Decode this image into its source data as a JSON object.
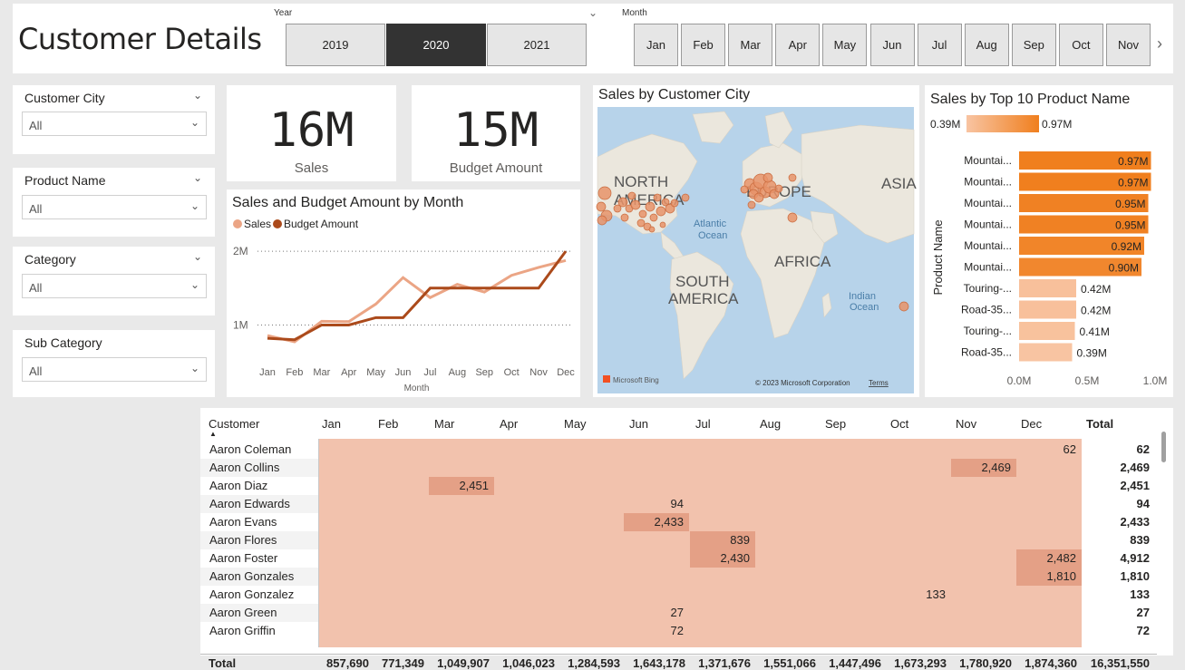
{
  "page": {
    "title": "Customer Details"
  },
  "year_slicer": {
    "caption": "Year",
    "options": [
      "2019",
      "2020",
      "2021"
    ],
    "selected": "2020"
  },
  "month_slicer": {
    "caption": "Month",
    "options": [
      "Jan",
      "Feb",
      "Mar",
      "Apr",
      "May",
      "Jun",
      "Jul",
      "Aug",
      "Sep",
      "Oct",
      "Nov"
    ]
  },
  "filters": [
    {
      "label": "Customer City",
      "value": "All"
    },
    {
      "label": "Product Name",
      "value": "All"
    },
    {
      "label": "Category",
      "value": "All"
    },
    {
      "label": "Sub Category",
      "value": "All"
    }
  ],
  "kpis": [
    {
      "value": "16M",
      "label": "Sales"
    },
    {
      "value": "15M",
      "label": "Budget Amount"
    }
  ],
  "line_chart": {
    "title": "Sales and Budget Amount by Month",
    "legend": [
      "Sales",
      "Budget Amount"
    ],
    "xlabel": "Month",
    "y_ticks": [
      "2M",
      "1M"
    ]
  },
  "map": {
    "title": "Sales by Customer City",
    "labels": [
      "NORTH AMERICA",
      "EUROPE",
      "ASIA",
      "Atlantic Ocean",
      "AFRICA",
      "SOUTH AMERICA",
      "Indian Ocean"
    ],
    "credit": "© 2023 Microsoft Corporation",
    "terms": "Terms",
    "bing": "Microsoft Bing"
  },
  "bar_chart": {
    "title": "Sales by Top 10 Product Name",
    "legend_min": "0.39M",
    "legend_max": "0.97M",
    "ylabel": "Product Name",
    "x_ticks": [
      "0.0M",
      "0.5M",
      "1.0M"
    ]
  },
  "chart_data": [
    {
      "type": "line",
      "title": "Sales and Budget Amount by Month",
      "xlabel": "Month",
      "ylabel": "",
      "categories": [
        "Jan",
        "Feb",
        "Mar",
        "Apr",
        "May",
        "Jun",
        "Jul",
        "Aug",
        "Sep",
        "Oct",
        "Nov",
        "Dec"
      ],
      "series": [
        {
          "name": "Sales",
          "color": "#eba585",
          "values": [
            857690,
            771349,
            1049907,
            1046023,
            1284593,
            1643178,
            1371676,
            1551066,
            1447496,
            1673293,
            1780920,
            1874360
          ]
        },
        {
          "name": "Budget Amount",
          "color": "#ab4a1b",
          "values": [
            820000,
            800000,
            1000000,
            1000000,
            1100000,
            1100000,
            1500000,
            1500000,
            1500000,
            1500000,
            1500000,
            2000000
          ]
        }
      ],
      "ylim": [
        600000,
        2100000
      ],
      "grid": true,
      "legend": "top-left"
    },
    {
      "type": "bar",
      "orientation": "horizontal",
      "title": "Sales by Top 10 Product Name",
      "ylabel": "Product Name",
      "categories": [
        "Mountai...",
        "Mountai...",
        "Mountai...",
        "Mountai...",
        "Mountai...",
        "Mountai...",
        "Touring-...",
        "Road-35...",
        "Touring-...",
        "Road-35..."
      ],
      "values": [
        0.97,
        0.97,
        0.95,
        0.95,
        0.92,
        0.9,
        0.42,
        0.42,
        0.41,
        0.39
      ],
      "labels": [
        "0.97M",
        "0.97M",
        "0.95M",
        "0.95M",
        "0.92M",
        "0.90M",
        "0.42M",
        "0.42M",
        "0.41M",
        "0.39M"
      ],
      "xlim": [
        0,
        1.0
      ],
      "color_min": "#f8c4a2",
      "color_max": "#f07f1e"
    }
  ],
  "matrix": {
    "row_header": "Customer",
    "columns": [
      "Jan",
      "Feb",
      "Mar",
      "Apr",
      "May",
      "Jun",
      "Jul",
      "Aug",
      "Sep",
      "Oct",
      "Nov",
      "Dec",
      "Total"
    ],
    "rows": [
      {
        "name": "Aaron Coleman",
        "cells": {
          "Dec": "62"
        },
        "total": "62"
      },
      {
        "name": "Aaron Collins",
        "cells": {
          "Nov": "2,469"
        },
        "total": "2,469"
      },
      {
        "name": "Aaron Diaz",
        "cells": {
          "Mar": "2,451"
        },
        "total": "2,451"
      },
      {
        "name": "Aaron Edwards",
        "cells": {
          "Jun": "94"
        },
        "total": "94"
      },
      {
        "name": "Aaron Evans",
        "cells": {
          "Jun": "2,433"
        },
        "total": "2,433"
      },
      {
        "name": "Aaron Flores",
        "cells": {
          "Jul": "839"
        },
        "total": "839"
      },
      {
        "name": "Aaron Foster",
        "cells": {
          "Jul": "2,430",
          "Dec": "2,482"
        },
        "total": "4,912"
      },
      {
        "name": "Aaron Gonzales",
        "cells": {
          "Dec": "1,810"
        },
        "total": "1,810"
      },
      {
        "name": "Aaron Gonzalez",
        "cells": {
          "Oct": "133"
        },
        "total": "133"
      },
      {
        "name": "Aaron Green",
        "cells": {
          "Jun": "27"
        },
        "total": "27"
      },
      {
        "name": "Aaron Griffin",
        "cells": {
          "Jun": "72"
        },
        "total": "72"
      }
    ],
    "totals_label": "Total",
    "totals": [
      "857,690",
      "771,349",
      "1,049,907",
      "1,046,023",
      "1,284,593",
      "1,643,178",
      "1,371,676",
      "1,551,066",
      "1,447,496",
      "1,673,293",
      "1,780,920",
      "1,874,360",
      "16,351,550"
    ]
  },
  "colors": {
    "accent": "#f07f1e",
    "cell_bg": "#f2c2ad",
    "cell_hi": "#e4a086",
    "selected": "#333333"
  }
}
